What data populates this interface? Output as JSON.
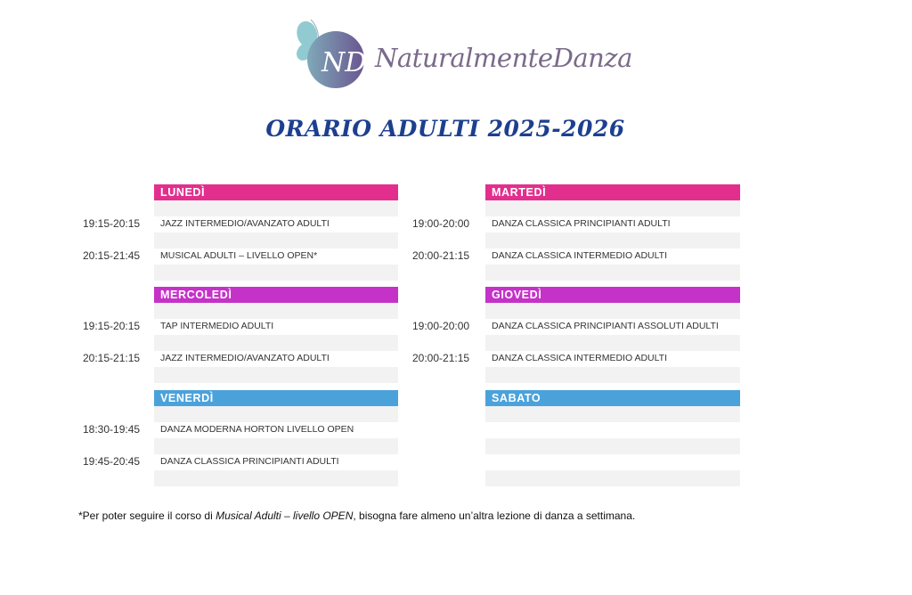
{
  "logo": {
    "text": "NaturalmenteDanza",
    "monogram": "ND",
    "butterfly_color": "#7cc0c8",
    "circle_color": "#6a5e94"
  },
  "title": "ORARIO ADULTI 2025-2026",
  "colors": {
    "lunedi": "#e22f8e",
    "martedi": "#e22f8e",
    "mercoledi": "#c532c8",
    "giovedi": "#c532c8",
    "venerdi": "#4ba2db",
    "sabato": "#4ba2db",
    "title": "#1d3f8f"
  },
  "days": [
    {
      "key": "lunedi",
      "name": "LUNEDÌ",
      "color": "#e22f8e",
      "classes": [
        {
          "time": "19:15-20:15",
          "course": "JAZZ INTERMEDIO/AVANZATO ADULTI"
        },
        {
          "time": "20:15-21:45",
          "course": "MUSICAL ADULTI – LIVELLO OPEN*"
        }
      ]
    },
    {
      "key": "martedi",
      "name": "MARTEDÌ",
      "color": "#e22f8e",
      "classes": [
        {
          "time": "19:00-20:00",
          "course": "DANZA CLASSICA PRINCIPIANTI ADULTI"
        },
        {
          "time": "20:00-21:15",
          "course": "DANZA CLASSICA INTERMEDIO ADULTI"
        }
      ]
    },
    {
      "key": "mercoledi",
      "name": "MERCOLEDÌ",
      "color": "#c532c8",
      "classes": [
        {
          "time": "19:15-20:15",
          "course": "TAP INTERMEDIO ADULTI"
        },
        {
          "time": "20:15-21:15",
          "course": "JAZZ INTERMEDIO/AVANZATO ADULTI"
        }
      ]
    },
    {
      "key": "giovedi",
      "name": "GIOVEDÌ",
      "color": "#c532c8",
      "classes": [
        {
          "time": "19:00-20:00",
          "course": "DANZA CLASSICA PRINCIPIANTI ASSOLUTI ADULTI"
        },
        {
          "time": "20:00-21:15",
          "course": "DANZA CLASSICA INTERMEDIO ADULTI"
        }
      ]
    },
    {
      "key": "venerdi",
      "name": "VENERDÌ",
      "color": "#4ba2db",
      "classes": [
        {
          "time": "18:30-19:45",
          "course": "DANZA MODERNA HORTON LIVELLO OPEN"
        },
        {
          "time": "19:45-20:45",
          "course": "DANZA CLASSICA PRINCIPIANTI ADULTI"
        }
      ]
    },
    {
      "key": "sabato",
      "name": "SABATO",
      "color": "#4ba2db",
      "classes": []
    }
  ],
  "footnote": {
    "pre": "*Per poter seguire il corso di ",
    "em": "Musical Adulti – livello OPEN",
    "post": ", bisogna fare almeno un’altra lezione di danza a settimana."
  }
}
